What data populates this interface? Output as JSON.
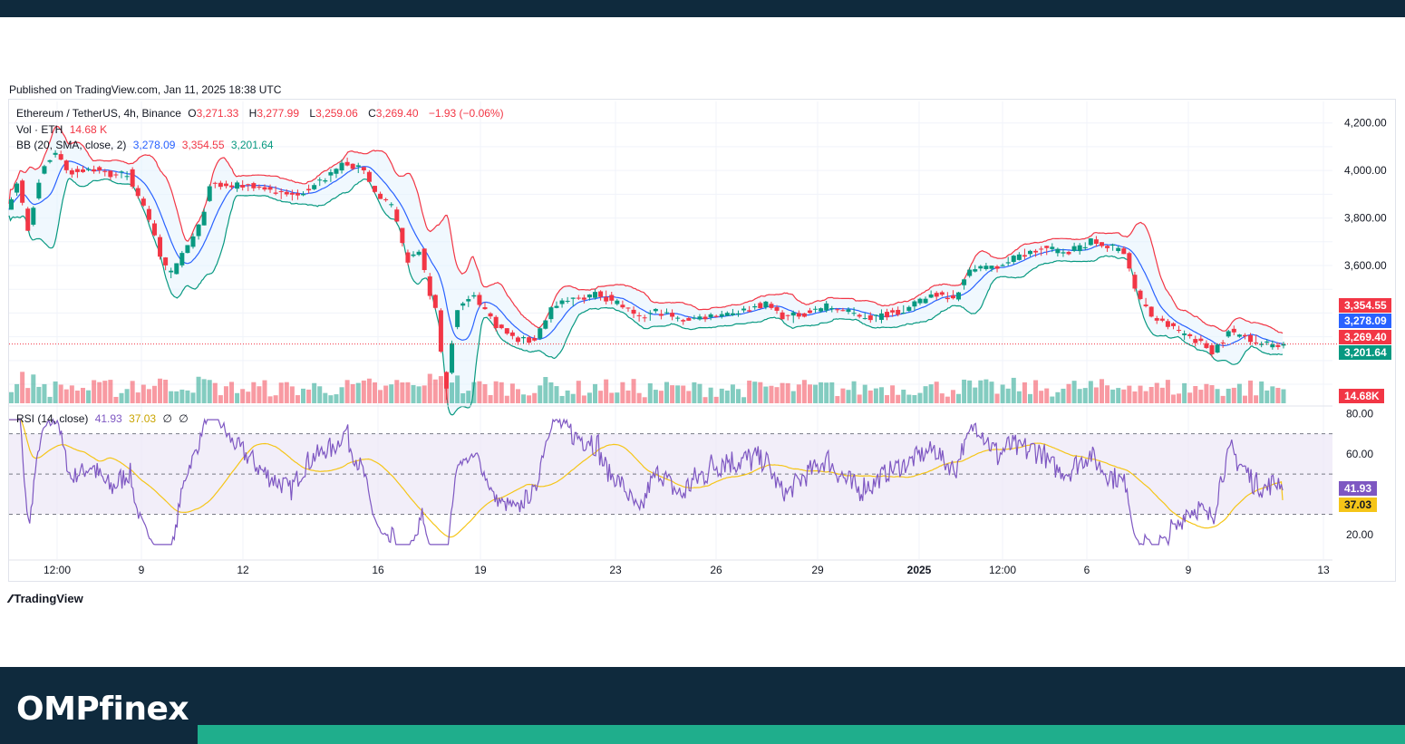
{
  "published": "Published on TradingView.com, Jan 11, 2025 18:38 UTC",
  "legend": {
    "symbol": "Ethereum / TetherUS, 4h, Binance",
    "o_label": "O",
    "o_value": "3,271.33",
    "h_label": "H",
    "h_value": "3,277.99",
    "l_label": "L",
    "l_value": "3,259.06",
    "c_label": "C",
    "c_value": "3,269.40",
    "change": "−1.93 (−0.06%)",
    "vol_label": "Vol · ETH",
    "vol_value": "14.68 K",
    "bb_label": "BB (20, SMA, close, 2)",
    "bb_basis": "3,278.09",
    "bb_upper": "3,354.55",
    "bb_lower": "3,201.64",
    "rsi_label": "RSI (14, close)",
    "rsi_value": "41.93",
    "rsi_ma": "37.03",
    "rsi_extra1": "∅",
    "rsi_extra2": "∅"
  },
  "tradingview_label": "TradingView",
  "brand": "OMPfinex",
  "colors": {
    "up": "#089981",
    "down": "#f23645",
    "basis": "#2962ff",
    "upper": "#f23645",
    "lower": "#089981",
    "band_fill": "#e3f2fd",
    "rsi": "#7e57c2",
    "rsi_ma": "#f5c518",
    "rsi_bg": "#ede7f6"
  },
  "chart_data": {
    "type": "candlestick",
    "price_axis_ticks": [
      "4,200.00",
      "4,000.00",
      "3,800.00",
      "3,600.00"
    ],
    "price_ylim": [
      3020,
      4260
    ],
    "rsi_axis_ticks": [
      "80.00",
      "60.00",
      "20.00"
    ],
    "rsi_ylim": [
      10,
      82
    ],
    "rsi_levels": [
      70,
      50,
      30
    ],
    "x_ticks": [
      "12:00",
      "9",
      "12",
      "16",
      "19",
      "23",
      "26",
      "29",
      "2025",
      "12:00",
      "6",
      "9",
      "13"
    ],
    "price_tags": [
      {
        "label": "3,354.55",
        "value": 3354.55,
        "color": "#f23645"
      },
      {
        "label": "3,278.09",
        "value": 3278.09,
        "color": "#2962ff"
      },
      {
        "label": "3,269.40",
        "value": 3269.4,
        "color": "#f23645"
      },
      {
        "label": "3,201.64",
        "value": 3201.64,
        "color": "#089981"
      }
    ],
    "volume_tag": "14.68K",
    "rsi_tags": [
      {
        "label": "41.93",
        "value": 41.93,
        "color": "#7e57c2"
      },
      {
        "label": "37.03",
        "value": 37.03,
        "color": "#f5c518"
      }
    ],
    "close_keypoints": [
      [
        0,
        3850
      ],
      [
        8,
        3950
      ],
      [
        15,
        3740
      ],
      [
        25,
        4000
      ],
      [
        35,
        4080
      ],
      [
        45,
        3990
      ],
      [
        60,
        4010
      ],
      [
        75,
        3980
      ],
      [
        88,
        3990
      ],
      [
        95,
        3880
      ],
      [
        105,
        3780
      ],
      [
        113,
        3600
      ],
      [
        120,
        3560
      ],
      [
        128,
        3660
      ],
      [
        138,
        3740
      ],
      [
        148,
        3940
      ],
      [
        160,
        3930
      ],
      [
        175,
        3940
      ],
      [
        190,
        3920
      ],
      [
        205,
        3890
      ],
      [
        220,
        3930
      ],
      [
        235,
        3980
      ],
      [
        245,
        4040
      ],
      [
        258,
        4000
      ],
      [
        270,
        3880
      ],
      [
        280,
        3840
      ],
      [
        290,
        3620
      ],
      [
        300,
        3660
      ],
      [
        307,
        3480
      ],
      [
        312,
        3400
      ],
      [
        318,
        3050
      ],
      [
        326,
        3420
      ],
      [
        340,
        3470
      ],
      [
        355,
        3350
      ],
      [
        368,
        3290
      ],
      [
        382,
        3280
      ],
      [
        395,
        3420
      ],
      [
        412,
        3460
      ],
      [
        428,
        3480
      ],
      [
        445,
        3440
      ],
      [
        458,
        3370
      ],
      [
        472,
        3410
      ],
      [
        488,
        3370
      ],
      [
        502,
        3380
      ],
      [
        520,
        3400
      ],
      [
        535,
        3410
      ],
      [
        550,
        3440
      ],
      [
        565,
        3380
      ],
      [
        580,
        3400
      ],
      [
        595,
        3430
      ],
      [
        612,
        3400
      ],
      [
        628,
        3380
      ],
      [
        642,
        3400
      ],
      [
        655,
        3420
      ],
      [
        672,
        3480
      ],
      [
        688,
        3470
      ],
      [
        702,
        3600
      ],
      [
        718,
        3590
      ],
      [
        735,
        3640
      ],
      [
        752,
        3670
      ],
      [
        770,
        3660
      ],
      [
        787,
        3700
      ],
      [
        800,
        3680
      ],
      [
        812,
        3660
      ],
      [
        820,
        3480
      ],
      [
        832,
        3380
      ],
      [
        845,
        3340
      ],
      [
        860,
        3300
      ],
      [
        875,
        3240
      ],
      [
        888,
        3320
      ],
      [
        900,
        3300
      ],
      [
        912,
        3270
      ],
      [
        925,
        3269
      ]
    ],
    "candle_count": 926,
    "volume_baseline": 14.68
  }
}
